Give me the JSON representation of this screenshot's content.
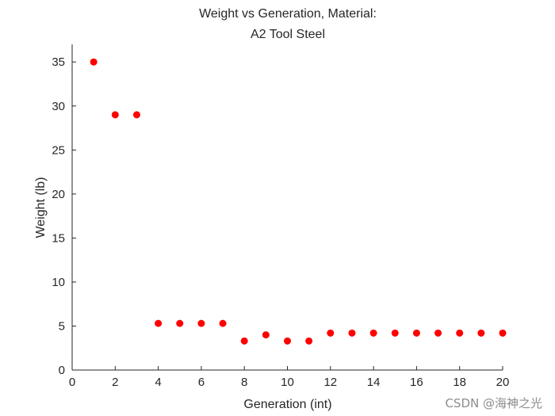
{
  "chart_data": {
    "type": "scatter",
    "title_lines": [
      "Weight vs Generation, Material:",
      "A2 Tool Steel"
    ],
    "xlabel": "Generation (int)",
    "ylabel": "Weight (lb)",
    "xlim": [
      0,
      20
    ],
    "ylim": [
      0,
      37
    ],
    "xticks": [
      0,
      2,
      4,
      6,
      8,
      10,
      12,
      14,
      16,
      18,
      20
    ],
    "yticks": [
      0,
      5,
      10,
      15,
      20,
      25,
      30,
      35
    ],
    "marker_color": "#ff0000",
    "grid": false,
    "series": [
      {
        "name": "Weight",
        "x": [
          1,
          2,
          3,
          4,
          5,
          6,
          7,
          8,
          9,
          10,
          11,
          12,
          13,
          14,
          15,
          16,
          17,
          18,
          19,
          20
        ],
        "y": [
          35,
          29,
          29,
          5.3,
          5.3,
          5.3,
          5.3,
          3.3,
          4.0,
          3.3,
          3.3,
          4.2,
          4.2,
          4.2,
          4.2,
          4.2,
          4.2,
          4.2,
          4.2,
          4.2
        ]
      }
    ]
  },
  "watermark": "CSDN @海神之光"
}
